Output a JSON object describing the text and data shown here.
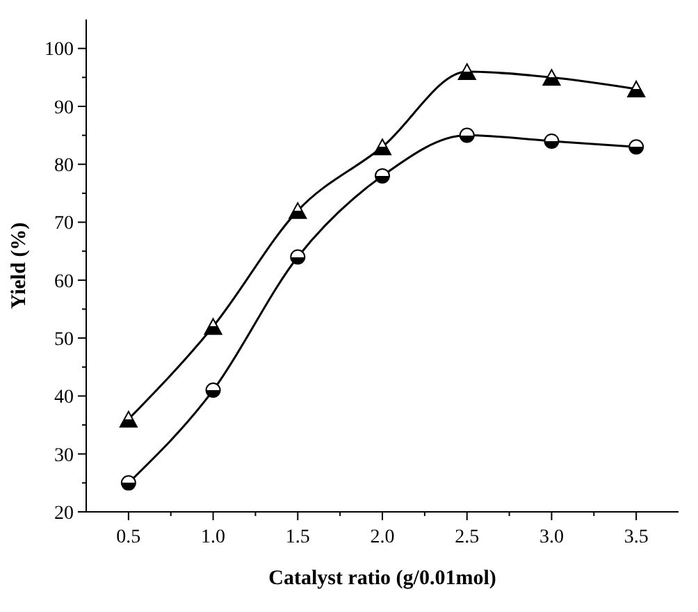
{
  "chart_data": {
    "type": "line",
    "xlabel": "Catalyst ratio (g/0.01mol)",
    "ylabel": "Yield (%)",
    "x": [
      0.5,
      1.0,
      1.5,
      2.0,
      2.5,
      3.0,
      3.5
    ],
    "xlim": [
      0.25,
      3.75
    ],
    "xticks": [
      {
        "value": 0.5,
        "label": "0.5"
      },
      {
        "value": 1.0,
        "label": "1.0"
      },
      {
        "value": 1.5,
        "label": "1.5"
      },
      {
        "value": 2.0,
        "label": "2.0"
      },
      {
        "value": 2.5,
        "label": "2.5"
      },
      {
        "value": 3.0,
        "label": "3.0"
      },
      {
        "value": 3.5,
        "label": "3.5"
      }
    ],
    "ylim": [
      20,
      105
    ],
    "yticks": [
      20,
      30,
      40,
      50,
      60,
      70,
      80,
      90,
      100
    ],
    "grid": false,
    "line_style": "solid",
    "series": [
      {
        "color": "#000000",
        "marker": "circle",
        "values": [
          25,
          41,
          64,
          78,
          85,
          84,
          83
        ]
      },
      {
        "color": "#000000",
        "marker": "triangle",
        "values": [
          36,
          52,
          72,
          83,
          96,
          95,
          93
        ]
      }
    ]
  }
}
